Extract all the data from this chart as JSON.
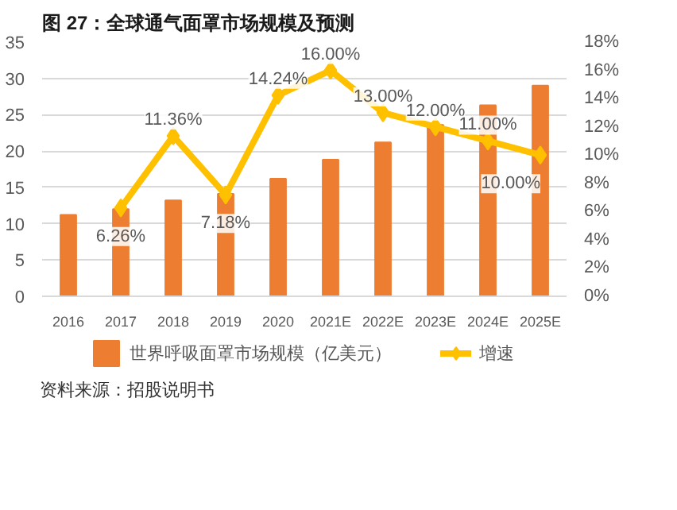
{
  "chart_data": {
    "type": "bar",
    "title": "图 27：全球通气面罩市场规模及预测",
    "categories": [
      "2016",
      "2017",
      "2018",
      "2019",
      "2020",
      "2021E",
      "2022E",
      "2023E",
      "2024E",
      "2025E"
    ],
    "series": [
      {
        "name": "世界呼吸面罩市场规模（亿美元）",
        "color": "#ed7d31",
        "values": [
          11.2,
          12.0,
          13.2,
          14.1,
          16.2,
          18.8,
          21.2,
          23.6,
          26.3,
          29.0
        ]
      },
      {
        "name": "增速",
        "type": "line",
        "axis": "y2",
        "color": "#ffc000",
        "marker": "diamond",
        "values": [
          null,
          6.26,
          11.36,
          7.18,
          14.24,
          16.0,
          13.0,
          12.0,
          11.0,
          10.0
        ],
        "value_labels": [
          null,
          "6.26%",
          "11.36%",
          "7.18%",
          "14.24%",
          "16.00%",
          "13.00%",
          "12.00%",
          "11.00%",
          "10.00%"
        ]
      }
    ],
    "ylim": [
      0,
      35
    ],
    "yticks": [
      0,
      5,
      10,
      15,
      20,
      25,
      30,
      35
    ],
    "y2lim": [
      0,
      18
    ],
    "y2ticks": [
      {
        "value": 0,
        "label": "0%"
      },
      {
        "value": 2,
        "label": "2%"
      },
      {
        "value": 4,
        "label": "4%"
      },
      {
        "value": 6,
        "label": "6%"
      },
      {
        "value": 8,
        "label": "8%"
      },
      {
        "value": 10,
        "label": "10%"
      },
      {
        "value": 12,
        "label": "12%"
      },
      {
        "value": 14,
        "label": "14%"
      },
      {
        "value": 16,
        "label": "16%"
      },
      {
        "value": 18,
        "label": "18%"
      }
    ],
    "grid": "y",
    "legend": "bottom",
    "annotations": [
      "资料来源：招股说明书"
    ]
  }
}
